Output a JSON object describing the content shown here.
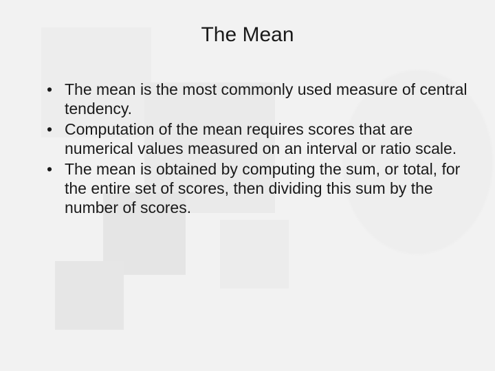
{
  "slide": {
    "title": "The Mean",
    "bullets": [
      "The mean is the most commonly used measure of central tendency.",
      "Computation of the mean requires scores that are numerical values measured on an interval or ratio scale.",
      "The mean is obtained by computing the sum, or total, for the entire set of scores, then dividing this sum by the number of scores."
    ],
    "style": {
      "background_color": "#f2f2f2",
      "title_fontsize": 30,
      "body_fontsize": 23,
      "text_color": "#1a1a1a",
      "font_family": "Arial"
    }
  }
}
